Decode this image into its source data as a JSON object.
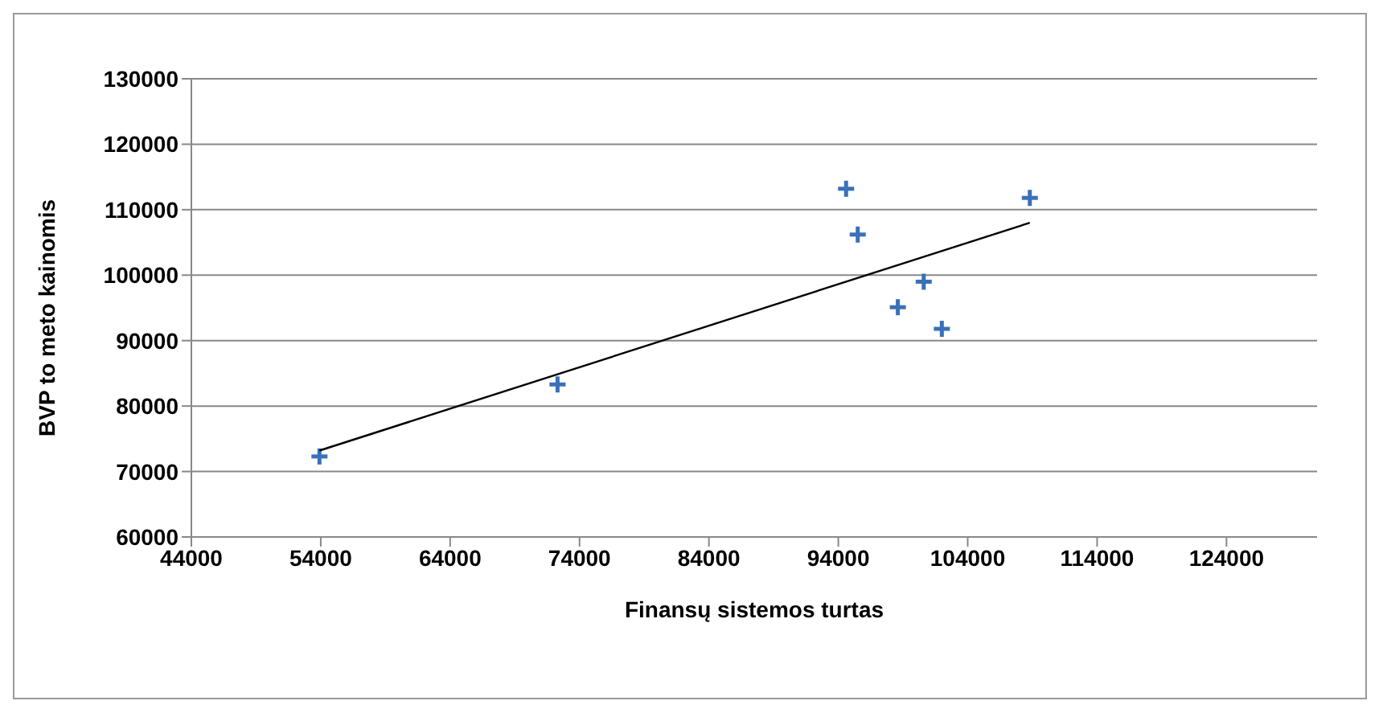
{
  "chart_data": {
    "type": "scatter",
    "xlabel": "Finansų sistemos turtas",
    "ylabel": "BVP to meto kainomis",
    "xlim": [
      44000,
      131000
    ],
    "xticks": [
      44000,
      54000,
      64000,
      74000,
      84000,
      94000,
      104000,
      114000,
      124000
    ],
    "ylim": [
      60000,
      130000
    ],
    "yticks": [
      60000,
      70000,
      80000,
      90000,
      100000,
      110000,
      120000,
      130000
    ],
    "grid": "y",
    "marker": "cross",
    "series": [
      {
        "color": "#3a70b8",
        "x": [
          53900,
          72300,
          94600,
          95500,
          98600,
          100600,
          102000,
          108800
        ],
        "values": [
          72300,
          83300,
          113200,
          106200,
          95100,
          99000,
          91800,
          111800
        ]
      },
      {
        "type": "line",
        "color": "#000000",
        "marker": "none",
        "x": [
          53900,
          108800
        ],
        "values": [
          73200,
          108000
        ]
      }
    ]
  }
}
